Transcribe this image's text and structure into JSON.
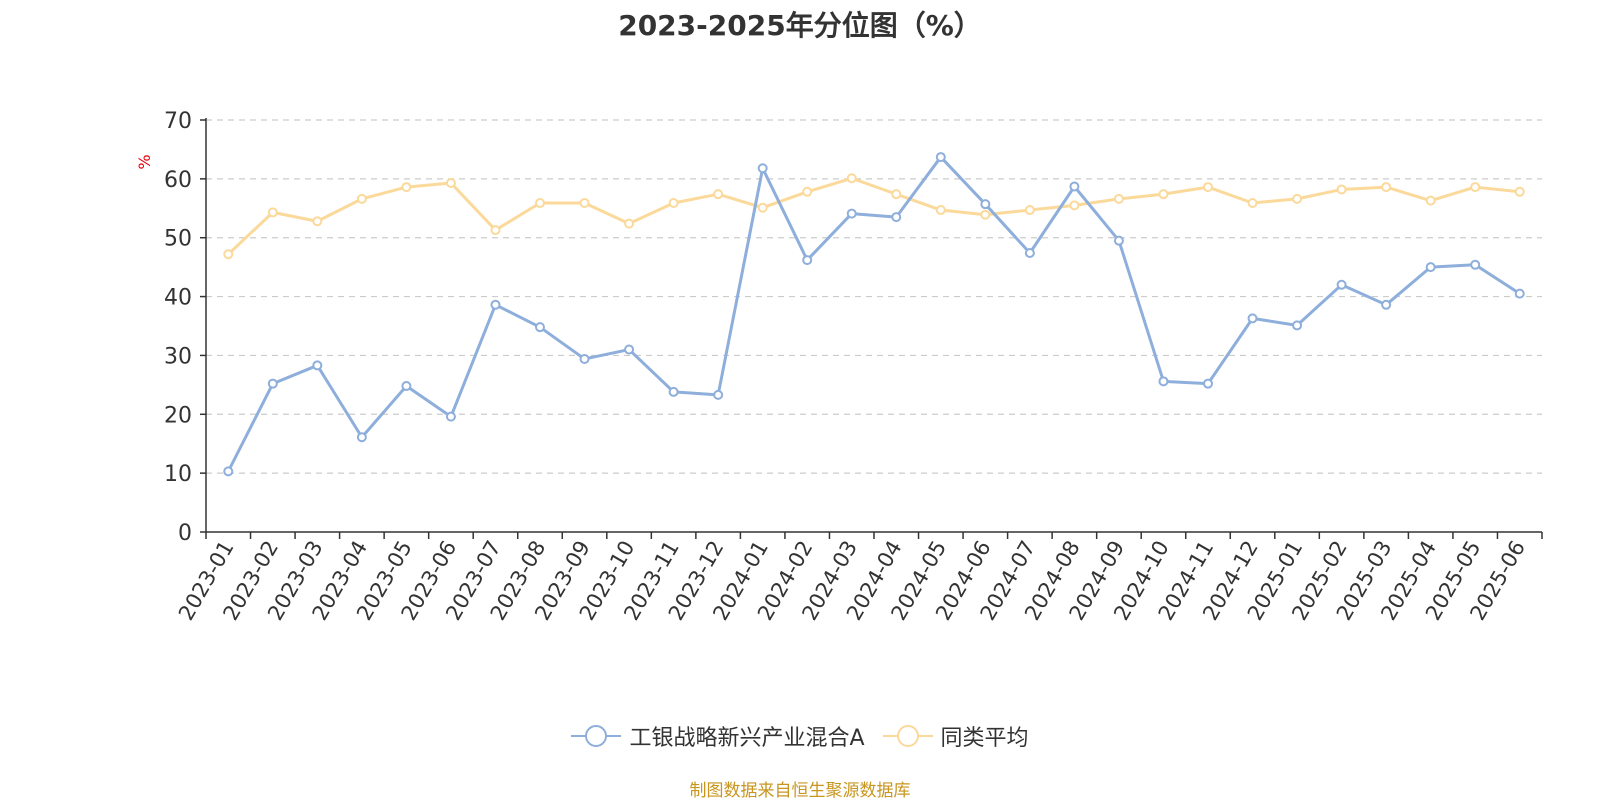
{
  "chart_data": {
    "type": "line",
    "title": "2023-2025年分位图（%）",
    "ylabel": "%",
    "xlabel": "",
    "ylim": [
      0,
      70
    ],
    "yticks": [
      0,
      10,
      20,
      30,
      40,
      50,
      60,
      70
    ],
    "grid": true,
    "legend_position": "bottom",
    "categories": [
      "2023-01",
      "2023-02",
      "2023-03",
      "2023-04",
      "2023-05",
      "2023-06",
      "2023-07",
      "2023-08",
      "2023-09",
      "2023-10",
      "2023-11",
      "2023-12",
      "2024-01",
      "2024-02",
      "2024-03",
      "2024-04",
      "2024-05",
      "2024-06",
      "2024-07",
      "2024-08",
      "2024-09",
      "2024-10",
      "2024-11",
      "2024-12",
      "2025-01",
      "2025-02",
      "2025-03",
      "2025-04",
      "2025-05",
      "2025-06"
    ],
    "series": [
      {
        "name": "工银战略新兴产业混合A",
        "color": "#8eaedb",
        "values": [
          10.3,
          25.2,
          28.3,
          16.1,
          24.8,
          19.6,
          38.6,
          34.8,
          29.4,
          31.0,
          23.8,
          23.3,
          61.8,
          46.2,
          54.1,
          53.5,
          63.7,
          55.7,
          47.4,
          58.7,
          49.5,
          25.6,
          25.2,
          36.3,
          35.1,
          42.0,
          38.6,
          45.0,
          45.4,
          40.5
        ]
      },
      {
        "name": "同类平均",
        "color": "#fbd99a",
        "values": [
          47.2,
          54.3,
          52.8,
          56.6,
          58.6,
          59.3,
          51.3,
          55.9,
          55.9,
          52.4,
          55.9,
          57.4,
          55.1,
          57.8,
          60.1,
          57.4,
          54.7,
          53.9,
          54.7,
          55.5,
          56.6,
          57.4,
          58.6,
          55.9,
          56.6,
          58.2,
          58.6,
          56.3,
          58.6,
          57.8
        ]
      }
    ]
  },
  "source_note": "制图数据来自恒生聚源数据库"
}
